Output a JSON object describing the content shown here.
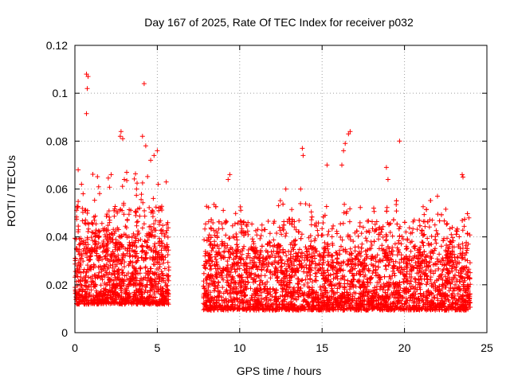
{
  "chart_data": {
    "type": "scatter",
    "title": "Day 167 of 2025, Rate Of TEC Index for receiver p032",
    "xlabel": "GPS time / hours",
    "ylabel": "ROTI / TECUs",
    "xlim": [
      0,
      25
    ],
    "ylim": [
      0,
      0.12
    ],
    "xticks": [
      0,
      5,
      10,
      15,
      20,
      25
    ],
    "xtick_labels": [
      "0",
      "5",
      "10",
      "15",
      "20",
      "25"
    ],
    "yticks": [
      0,
      0.02,
      0.04,
      0.06,
      0.08,
      0.1,
      0.12
    ],
    "ytick_labels": [
      "0",
      "0.02",
      "0.04",
      "0.06",
      "0.08",
      "0.1",
      "0.12"
    ],
    "grid": true,
    "marker": "+",
    "color": "#ff0000",
    "series": [
      {
        "name": "ROTI",
        "segments": [
          {
            "x_range": [
              0.0,
              5.7
            ],
            "typical_range": [
              0.006,
              0.045
            ],
            "max": 0.108
          },
          {
            "x_range": [
              7.8,
              24.0
            ],
            "typical_range": [
              0.004,
              0.04
            ],
            "max": 0.084
          }
        ],
        "highlighted_points": [
          {
            "x": 0.7,
            "y": 0.108
          },
          {
            "x": 0.8,
            "y": 0.107
          },
          {
            "x": 0.75,
            "y": 0.102
          },
          {
            "x": 0.7,
            "y": 0.0915
          },
          {
            "x": 4.2,
            "y": 0.104
          },
          {
            "x": 2.8,
            "y": 0.084
          },
          {
            "x": 2.75,
            "y": 0.082
          },
          {
            "x": 2.9,
            "y": 0.081
          },
          {
            "x": 4.1,
            "y": 0.082
          },
          {
            "x": 4.3,
            "y": 0.078
          },
          {
            "x": 5.0,
            "y": 0.076
          },
          {
            "x": 4.8,
            "y": 0.074
          },
          {
            "x": 4.6,
            "y": 0.072
          },
          {
            "x": 0.2,
            "y": 0.068
          },
          {
            "x": 0.4,
            "y": 0.062
          },
          {
            "x": 0.5,
            "y": 0.058
          },
          {
            "x": 2.2,
            "y": 0.066
          },
          {
            "x": 3.0,
            "y": 0.064
          },
          {
            "x": 9.4,
            "y": 0.066
          },
          {
            "x": 9.3,
            "y": 0.064
          },
          {
            "x": 12.8,
            "y": 0.06
          },
          {
            "x": 13.8,
            "y": 0.077
          },
          {
            "x": 13.85,
            "y": 0.074
          },
          {
            "x": 13.7,
            "y": 0.06
          },
          {
            "x": 16.7,
            "y": 0.084
          },
          {
            "x": 16.6,
            "y": 0.083
          },
          {
            "x": 16.4,
            "y": 0.079
          },
          {
            "x": 16.3,
            "y": 0.076
          },
          {
            "x": 15.3,
            "y": 0.07
          },
          {
            "x": 16.2,
            "y": 0.07
          },
          {
            "x": 19.7,
            "y": 0.08
          },
          {
            "x": 18.9,
            "y": 0.069
          },
          {
            "x": 19.0,
            "y": 0.064
          },
          {
            "x": 23.5,
            "y": 0.066
          },
          {
            "x": 23.55,
            "y": 0.065
          },
          {
            "x": 22.0,
            "y": 0.057
          }
        ]
      }
    ]
  }
}
